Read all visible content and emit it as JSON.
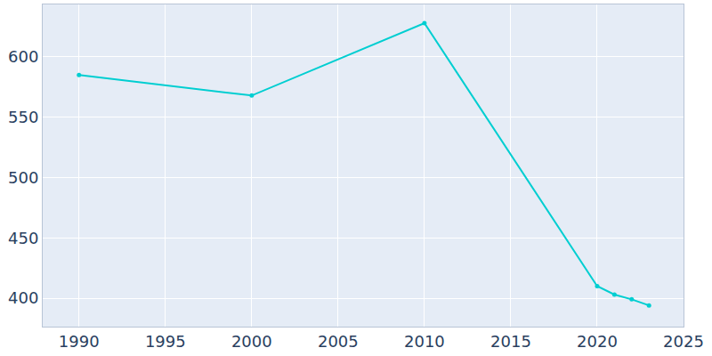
{
  "chart_data": {
    "type": "line",
    "x": [
      1990,
      2000,
      2010,
      2020,
      2021,
      2022,
      2023
    ],
    "values": [
      585,
      568,
      628,
      410,
      403,
      399,
      394
    ],
    "color": "#00ced1",
    "marker": "circle",
    "line_style": "solid",
    "xlim": [
      1987.9,
      2025
    ],
    "xticks": [
      1990,
      1995,
      2000,
      2005,
      2010,
      2015,
      2020,
      2025
    ],
    "ylim": [
      376.4,
      643.5
    ],
    "yticks": [
      400,
      450,
      500,
      550,
      600
    ],
    "grid": true
  }
}
